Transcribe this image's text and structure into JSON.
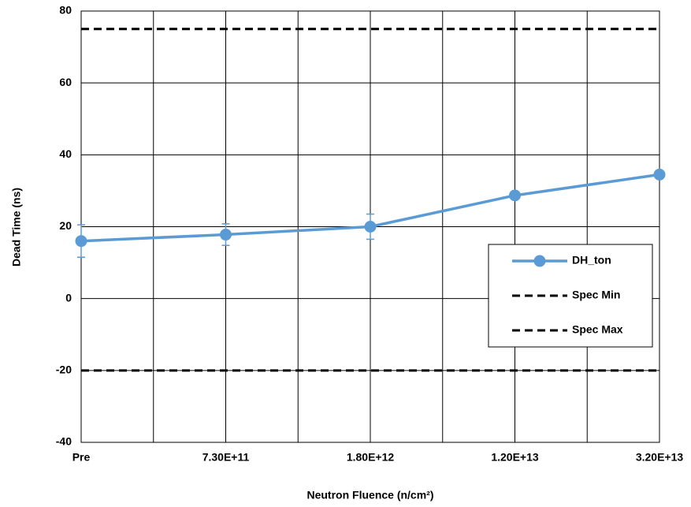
{
  "chart_data": {
    "type": "line",
    "x_label": "Neutron Fluence (n/cm²)",
    "y_label": "Dead Time (ns)",
    "categories": [
      "Pre",
      "7.30E+11",
      "1.80E+12",
      "1.20E+13",
      "3.20E+13"
    ],
    "series": [
      {
        "name": "DH_ton",
        "color": "#5b9bd5",
        "marker": "circle",
        "values": [
          16,
          17.8,
          20,
          28.7,
          34.5
        ],
        "errors": [
          4.5,
          3,
          3.5,
          null,
          null
        ]
      },
      {
        "name": "Spec Min",
        "color": "#000000",
        "dash": true,
        "values": [
          -20,
          -20,
          -20,
          -20,
          -20
        ]
      },
      {
        "name": "Spec Max",
        "color": "#000000",
        "dash": true,
        "values": [
          75,
          75,
          75,
          75,
          75
        ]
      }
    ],
    "ylim": [
      -40,
      80
    ],
    "yticks": [
      -40,
      -20,
      0,
      20,
      40,
      60,
      80
    ],
    "grid": true,
    "legend": "right"
  }
}
